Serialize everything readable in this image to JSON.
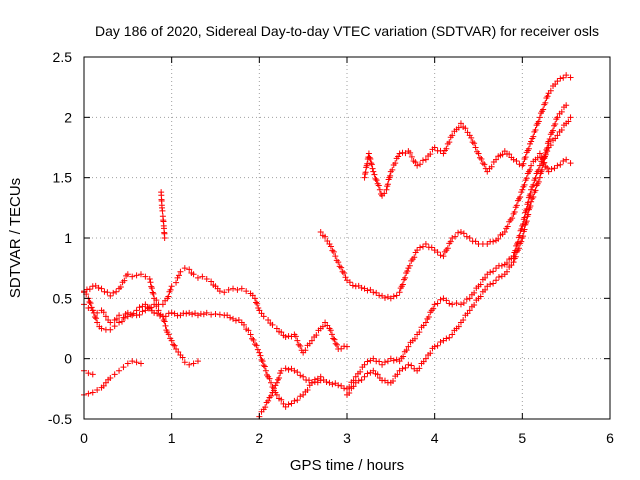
{
  "chart_data": {
    "type": "scatter",
    "title": "Day 186 of 2020, Sidereal Day-to-day VTEC variation (SDTVAR) for receiver osls",
    "xlabel": "GPS time / hours",
    "ylabel": "SDTVAR / TECUs",
    "xlim": [
      0,
      6
    ],
    "ylim": [
      -0.5,
      2.5
    ],
    "xticks": [
      "0",
      "1",
      "2",
      "3",
      "4",
      "5",
      "6"
    ],
    "yticks": [
      "-0.5",
      "0",
      "0.5",
      "1",
      "1.5",
      "2",
      "2.5"
    ],
    "grid": true,
    "marker": "+",
    "color": "#ff0000",
    "series": [
      {
        "x": [
          0.0,
          0.1,
          0.2,
          0.3,
          0.4,
          0.5,
          0.55,
          0.6,
          0.65,
          0.7,
          0.75,
          0.8,
          0.85,
          0.9,
          0.95,
          1.0,
          1.05,
          1.1,
          1.15,
          1.2,
          1.25,
          1.3,
          1.35,
          1.4,
          1.45,
          1.5,
          1.55,
          1.6,
          1.65,
          1.7,
          1.75,
          1.8,
          1.85,
          1.9,
          1.95,
          2.0,
          2.05,
          2.1,
          2.15,
          2.2,
          2.3,
          2.4,
          2.5,
          2.6,
          2.7,
          2.75,
          2.8,
          2.9,
          3.0
        ],
        "y": [
          0.56,
          0.6,
          0.58,
          0.52,
          0.58,
          0.7,
          0.68,
          0.69,
          0.7,
          0.68,
          0.66,
          0.5,
          0.45,
          0.45,
          0.5,
          0.6,
          0.63,
          0.72,
          0.75,
          0.74,
          0.7,
          0.67,
          0.68,
          0.66,
          0.64,
          0.6,
          0.56,
          0.55,
          0.57,
          0.58,
          0.57,
          0.58,
          0.56,
          0.54,
          0.5,
          0.4,
          0.35,
          0.32,
          0.28,
          0.25,
          0.18,
          0.2,
          0.05,
          0.15,
          0.25,
          0.3,
          0.25,
          0.08,
          0.1
        ]
      },
      {
        "x": [
          0.0,
          0.05,
          0.1,
          0.15,
          0.2,
          0.25,
          0.3,
          0.35,
          0.4,
          0.5,
          0.6,
          0.7,
          0.8,
          0.9,
          1.0,
          1.1,
          1.2,
          1.3,
          1.4,
          1.5,
          1.6,
          1.7,
          1.8,
          1.9,
          2.0,
          2.1,
          2.2,
          2.3,
          2.4,
          2.5,
          2.6,
          2.7
        ],
        "y": [
          0.55,
          0.5,
          0.4,
          0.3,
          0.25,
          0.24,
          0.24,
          0.27,
          0.3,
          0.35,
          0.4,
          0.45,
          0.38,
          0.35,
          0.38,
          0.36,
          0.38,
          0.36,
          0.38,
          0.37,
          0.36,
          0.33,
          0.3,
          0.2,
          0.05,
          -0.15,
          -0.3,
          -0.4,
          -0.35,
          -0.3,
          -0.2,
          -0.15
        ]
      },
      {
        "x": [
          0.0,
          0.05,
          0.1,
          0.15,
          0.2,
          0.25,
          0.3,
          0.35,
          0.4,
          0.45,
          0.5,
          0.55,
          0.6,
          0.7,
          0.8,
          0.9,
          0.95,
          1.0,
          1.05,
          1.1,
          1.15,
          1.2,
          1.25,
          1.3
        ],
        "y": [
          0.45,
          0.42,
          0.4,
          0.38,
          0.4,
          0.35,
          0.3,
          0.32,
          0.36,
          0.34,
          0.38,
          0.36,
          0.36,
          0.4,
          0.45,
          0.35,
          0.22,
          0.15,
          0.08,
          0.03,
          -0.03,
          -0.05,
          -0.04,
          -0.02
        ]
      },
      {
        "x": [
          0.0,
          0.05,
          0.1,
          0.15,
          0.2,
          0.25,
          0.3,
          0.35,
          0.4,
          0.45,
          0.5,
          0.55,
          0.6,
          0.65
        ],
        "y": [
          -0.3,
          -0.29,
          -0.28,
          -0.26,
          -0.24,
          -0.2,
          -0.16,
          -0.13,
          -0.1,
          -0.07,
          -0.04,
          -0.02,
          -0.03,
          -0.04
        ]
      },
      {
        "x": [
          0.0,
          0.05,
          0.1
        ],
        "y": [
          -0.1,
          -0.12,
          -0.13
        ]
      },
      {
        "x": [
          0.88,
          0.89,
          0.9,
          0.91,
          0.92
        ],
        "y": [
          1.38,
          1.25,
          1.18,
          1.1,
          1.0
        ]
      },
      {
        "x": [
          2.0,
          2.05,
          2.1,
          2.15,
          2.2,
          2.25,
          2.3,
          2.4,
          2.5,
          2.6,
          2.7,
          2.8,
          2.9,
          3.0,
          3.1,
          3.2,
          3.3,
          3.4,
          3.5,
          3.6,
          3.7,
          3.8,
          3.9,
          4.0,
          4.1,
          4.2,
          4.3,
          4.4,
          4.5,
          4.6,
          4.7,
          4.8,
          4.9,
          5.0,
          5.1,
          5.2,
          5.3,
          5.4,
          5.5,
          5.55
        ],
        "y": [
          -0.48,
          -0.42,
          -0.35,
          -0.28,
          -0.2,
          -0.1,
          -0.08,
          -0.1,
          -0.15,
          -0.2,
          -0.18,
          -0.2,
          -0.22,
          -0.25,
          -0.15,
          -0.05,
          0.0,
          -0.05,
          0.0,
          -0.02,
          0.1,
          0.2,
          0.3,
          0.45,
          0.5,
          0.45,
          0.45,
          0.5,
          0.6,
          0.7,
          0.75,
          0.78,
          0.85,
          1.1,
          1.4,
          1.6,
          1.75,
          1.85,
          1.95,
          2.0
        ]
      },
      {
        "x": [
          2.7,
          2.8,
          2.9,
          3.0,
          3.1,
          3.2,
          3.3,
          3.4,
          3.5,
          3.6,
          3.7,
          3.8,
          3.9,
          4.0,
          4.1,
          4.2,
          4.3,
          4.4,
          4.5,
          4.6,
          4.7,
          4.8,
          4.9,
          5.0,
          5.1,
          5.2,
          5.3,
          5.4,
          5.5,
          5.55
        ],
        "y": [
          1.05,
          0.95,
          0.8,
          0.65,
          0.6,
          0.58,
          0.55,
          0.52,
          0.5,
          0.55,
          0.75,
          0.9,
          0.95,
          0.9,
          0.85,
          1.0,
          1.05,
          1.0,
          0.95,
          0.95,
          0.98,
          1.05,
          1.2,
          1.4,
          1.6,
          1.7,
          1.55,
          1.6,
          1.65,
          1.62
        ]
      },
      {
        "x": [
          3.2,
          3.25,
          3.3,
          3.35,
          3.4,
          3.45,
          3.5,
          3.6,
          3.7,
          3.8,
          3.9,
          4.0,
          4.1,
          4.2,
          4.3,
          4.4,
          4.5,
          4.6,
          4.7,
          4.8,
          4.9,
          5.0,
          5.1,
          5.2,
          5.3,
          5.4,
          5.5,
          5.55
        ],
        "y": [
          1.5,
          1.7,
          1.55,
          1.45,
          1.35,
          1.4,
          1.55,
          1.7,
          1.72,
          1.6,
          1.65,
          1.75,
          1.7,
          1.85,
          1.95,
          1.85,
          1.7,
          1.55,
          1.65,
          1.72,
          1.65,
          1.6,
          1.8,
          2.0,
          2.2,
          2.3,
          2.35,
          2.33
        ]
      },
      {
        "x": [
          3.0,
          3.1,
          3.2,
          3.3,
          3.4,
          3.5,
          3.6,
          3.7,
          3.8,
          3.9,
          4.0,
          4.1,
          4.2,
          4.3,
          4.4,
          4.5,
          4.6,
          4.7,
          4.8,
          4.9,
          5.0,
          5.1,
          5.2,
          5.3,
          5.4,
          5.5
        ],
        "y": [
          -0.3,
          -0.2,
          -0.15,
          -0.1,
          -0.18,
          -0.2,
          -0.1,
          -0.05,
          -0.1,
          0.0,
          0.1,
          0.15,
          0.2,
          0.3,
          0.4,
          0.5,
          0.6,
          0.65,
          0.7,
          0.8,
          1.0,
          1.3,
          1.5,
          1.8,
          2.0,
          2.1
        ]
      }
    ]
  }
}
